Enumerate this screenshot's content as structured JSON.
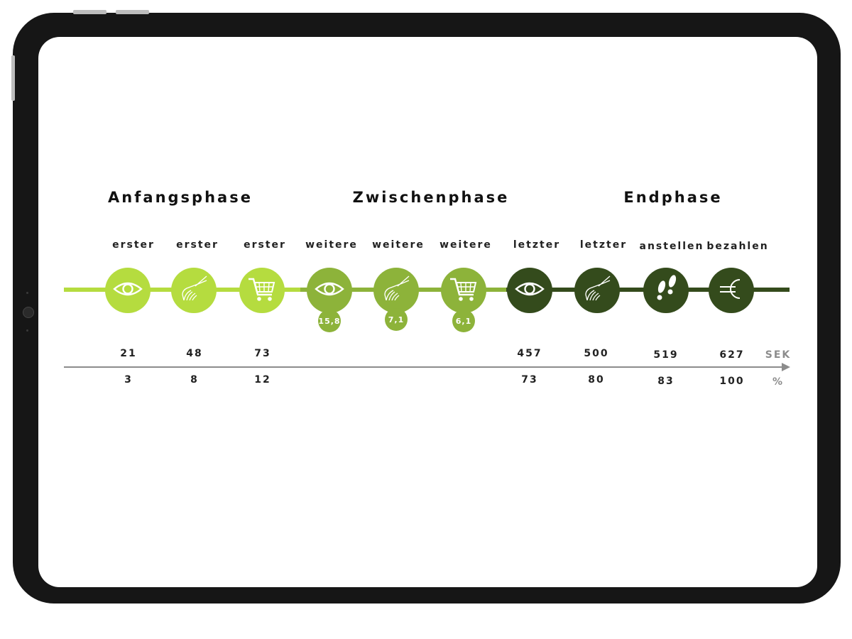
{
  "phases": [
    "Anfangsphase",
    "Zwischenphase",
    "Endphase"
  ],
  "steps": [
    {
      "label": "erster",
      "icon": "eye-icon",
      "seconds": "21",
      "percent": "3"
    },
    {
      "label": "erster",
      "icon": "hand-icon",
      "seconds": "48",
      "percent": "8"
    },
    {
      "label": "erster",
      "icon": "cart-icon",
      "seconds": "73",
      "percent": "12"
    },
    {
      "label": "weitere",
      "icon": "eye-icon",
      "badge": "15,8"
    },
    {
      "label": "weitere",
      "icon": "hand-icon",
      "badge": "7,1"
    },
    {
      "label": "weitere",
      "icon": "cart-icon",
      "badge": "6,1"
    },
    {
      "label": "letzter",
      "icon": "eye-icon",
      "seconds": "457",
      "percent": "73"
    },
    {
      "label": "letzter",
      "icon": "hand-icon",
      "seconds": "500",
      "percent": "80"
    },
    {
      "label": "anstellen",
      "icon": "footprints-icon",
      "seconds": "519",
      "percent": "83"
    },
    {
      "label": "bezahlen",
      "icon": "euro-icon",
      "seconds": "627",
      "percent": "100"
    }
  ],
  "axis": {
    "seconds_unit": "SEK",
    "percent_unit": "%"
  },
  "colors": {
    "light": "#b5dc3f",
    "mid": "#8db33a",
    "dark": "#344b1c",
    "axis": "#8c8c8c"
  }
}
